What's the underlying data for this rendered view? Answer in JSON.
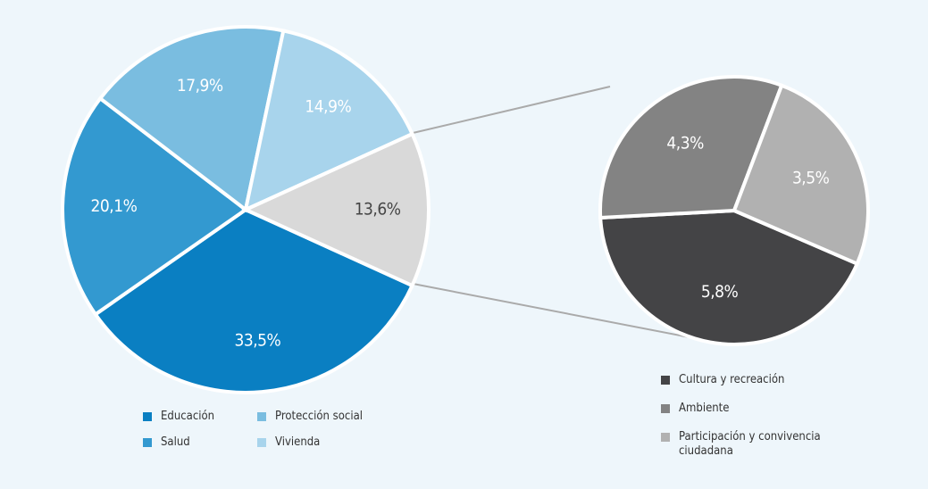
{
  "chart_data": [
    {
      "type": "pie",
      "categories": [
        "Educación",
        "Salud",
        "Protección social",
        "Vivienda",
        null
      ],
      "values": [
        33.5,
        20.1,
        17.9,
        14.9,
        13.6
      ],
      "value_labels": [
        "33,5%",
        "20,1%",
        "17,9%",
        "14,9%",
        "13,6%"
      ],
      "colors": [
        "#0a7fc2",
        "#3399d0",
        "#7abde0",
        "#a8d4ec",
        "#d9d9d9"
      ]
    },
    {
      "type": "pie",
      "categories": [
        "Cultura y recreación",
        "Ambiente",
        "Participación y convivencia ciudadana"
      ],
      "values": [
        5.8,
        4.3,
        3.5
      ],
      "value_labels": [
        "5,8%",
        "4,3%",
        "3,5%"
      ],
      "colors": [
        "#444446",
        "#838383",
        "#b1b1b1"
      ]
    }
  ]
}
